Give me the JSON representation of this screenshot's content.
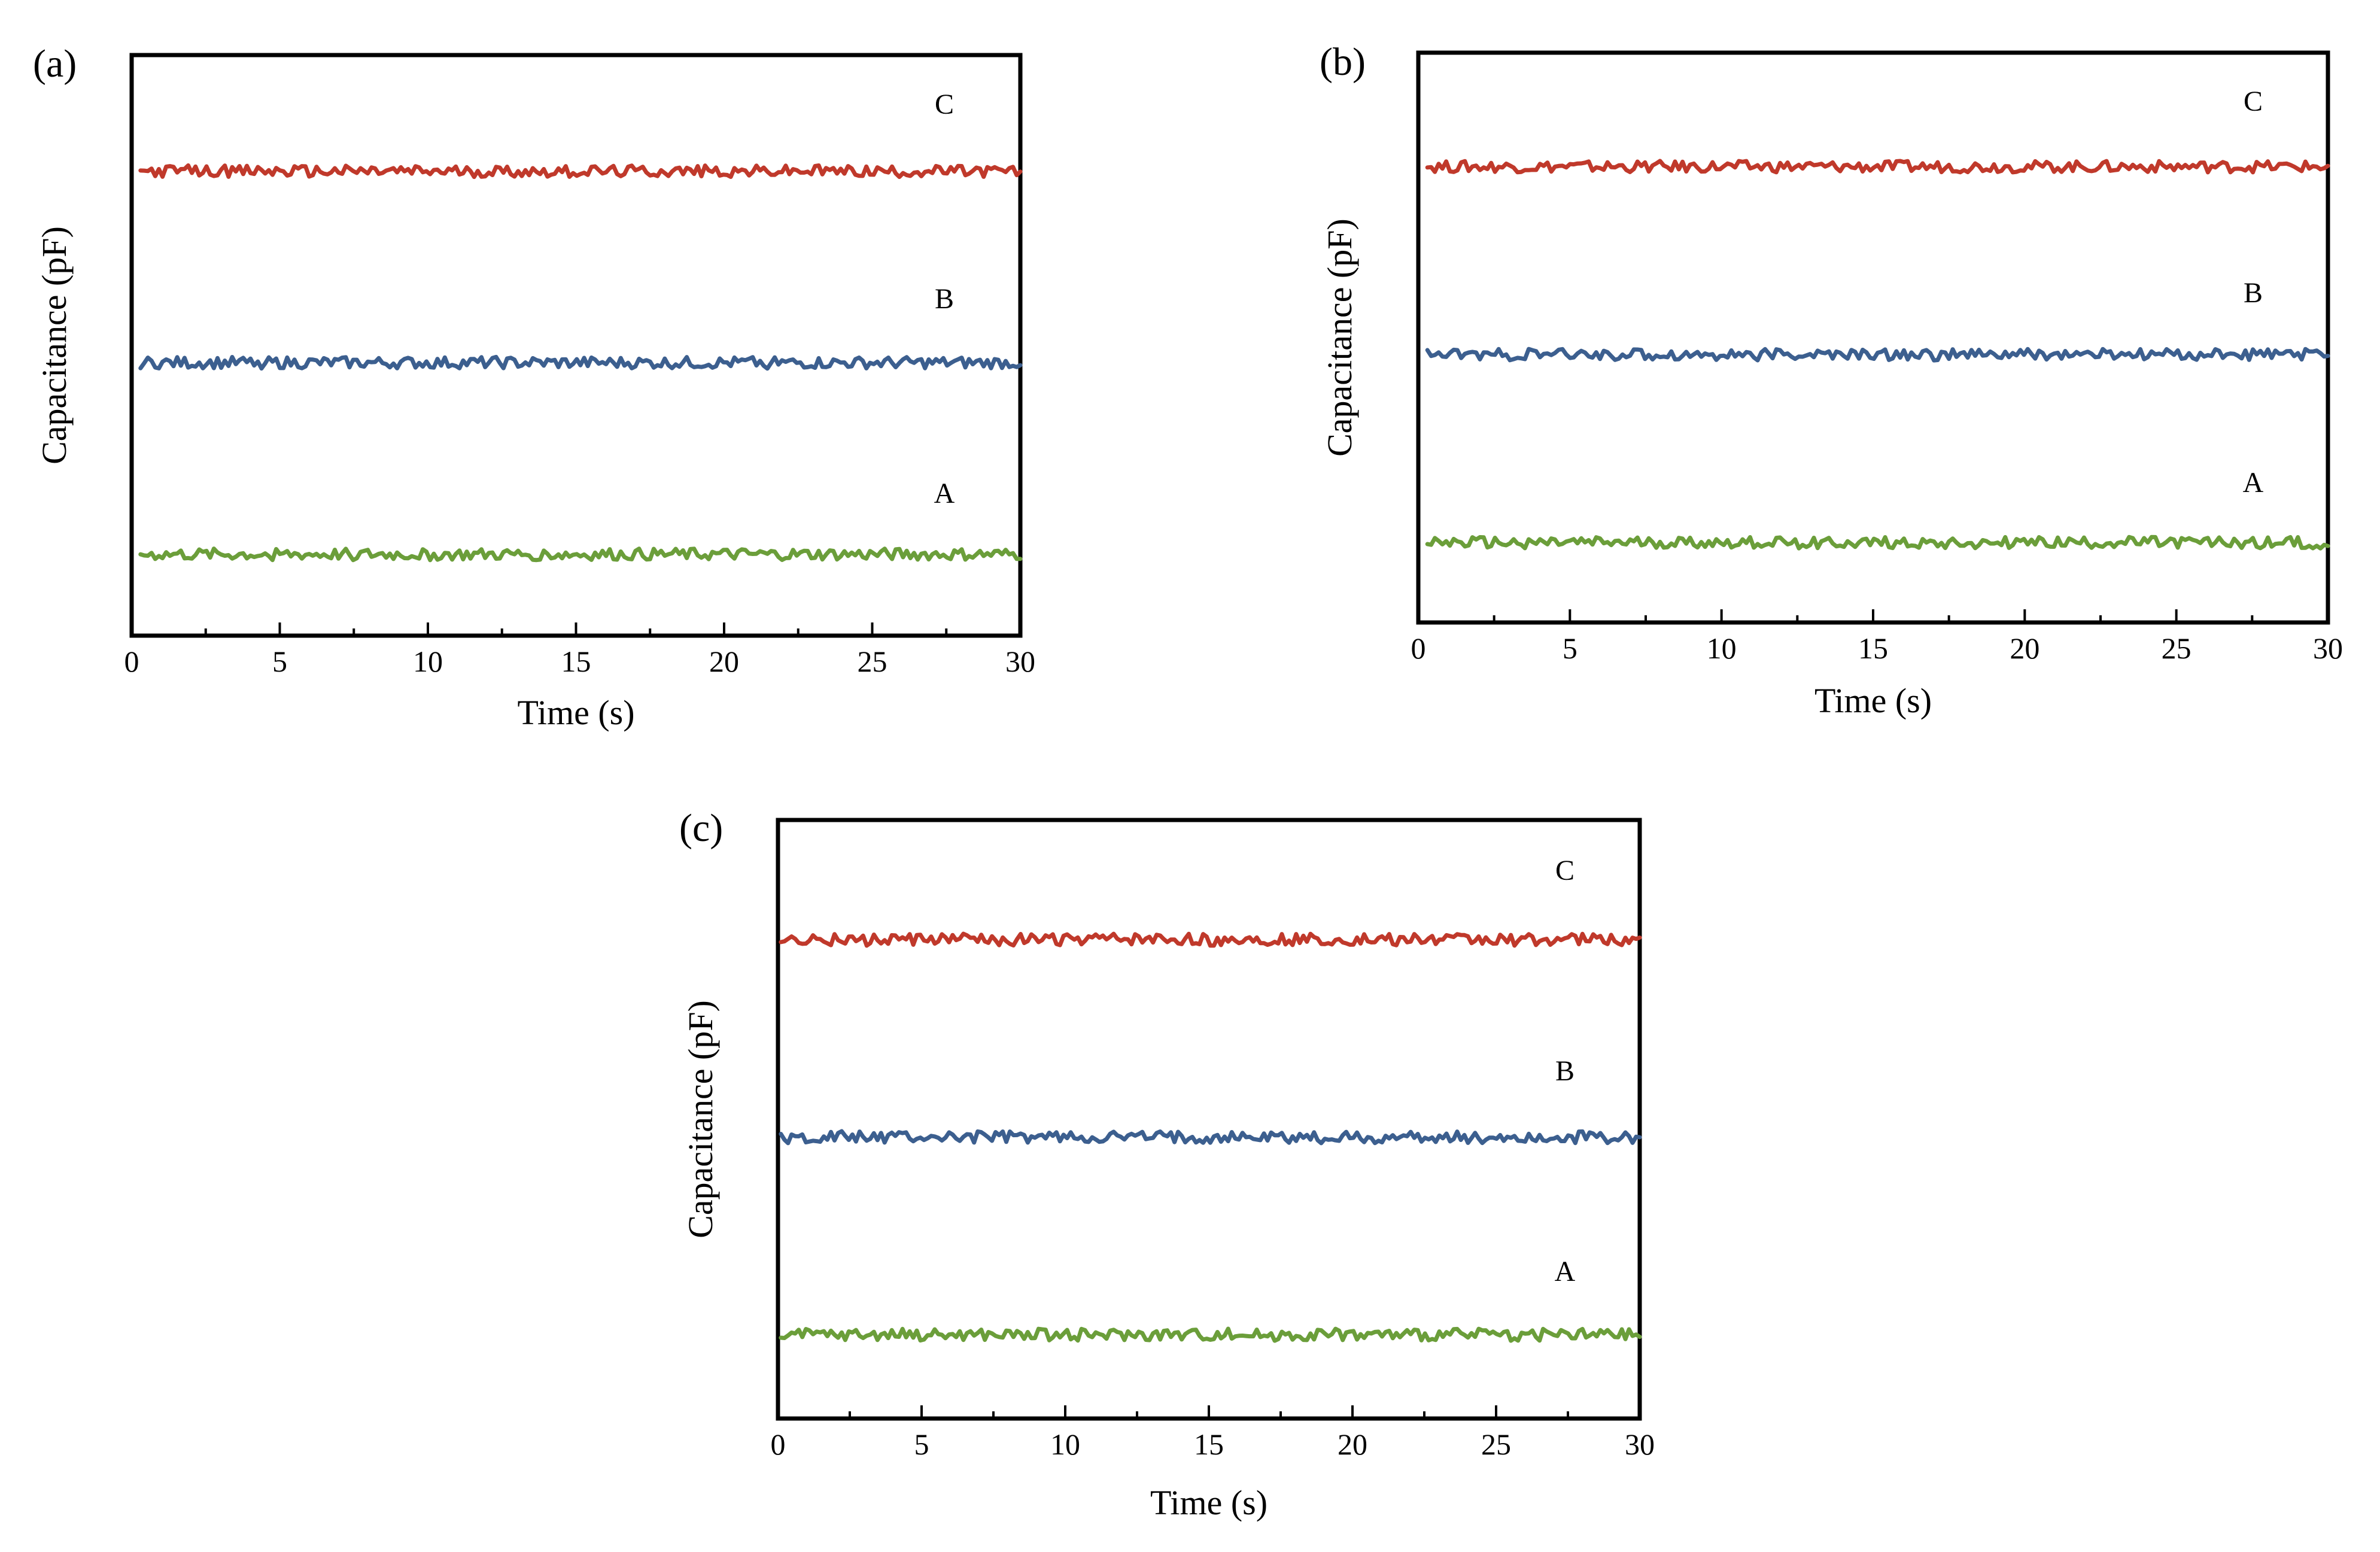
{
  "chart_data": [
    {
      "type": "line",
      "panel_label": "(a)",
      "xlabel": "Time (s)",
      "ylabel": "Capacitance (pF)",
      "xlim": [
        0,
        30
      ],
      "ylim": [
        0,
        10
      ],
      "x_ticks": [
        0,
        5,
        10,
        15,
        20,
        25,
        30
      ],
      "series": [
        {
          "name": "C",
          "color": "#c0392b",
          "level": 8.0,
          "x_start": 0.3,
          "x_end": 30
        },
        {
          "name": "B",
          "color": "#3c5f8f",
          "level": 4.7,
          "x_start": 0.3,
          "x_end": 30
        },
        {
          "name": "A",
          "color": "#6b9e3a",
          "level": 1.4,
          "x_start": 0.3,
          "x_end": 30
        }
      ]
    },
    {
      "type": "line",
      "panel_label": "(b)",
      "xlabel": "Time (s)",
      "ylabel": "Capacitance (pF)",
      "xlim": [
        0,
        30
      ],
      "ylim": [
        0,
        10
      ],
      "x_ticks": [
        0,
        5,
        10,
        15,
        20,
        25,
        30
      ],
      "series": [
        {
          "name": "C",
          "color": "#c0392b",
          "level": 8.0,
          "x_start": 0.3,
          "x_end": 30
        },
        {
          "name": "B",
          "color": "#3c5f8f",
          "level": 4.7,
          "x_start": 0.3,
          "x_end": 30
        },
        {
          "name": "A",
          "color": "#6b9e3a",
          "level": 1.4,
          "x_start": 0.3,
          "x_end": 30
        }
      ]
    },
    {
      "type": "line",
      "panel_label": "(c)",
      "xlabel": "Time (s)",
      "ylabel": "Capacitance (pF)",
      "xlim": [
        0,
        30
      ],
      "ylim": [
        0,
        10
      ],
      "x_ticks": [
        0,
        5,
        10,
        15,
        20,
        25,
        30
      ],
      "series": [
        {
          "name": "C",
          "color": "#c0392b",
          "level": 8.0,
          "x_start": 0.1,
          "x_end": 30
        },
        {
          "name": "B",
          "color": "#3c5f8f",
          "level": 4.7,
          "x_start": 0.1,
          "x_end": 30
        },
        {
          "name": "A",
          "color": "#6b9e3a",
          "level": 1.4,
          "x_start": 0.1,
          "x_end": 30
        }
      ]
    }
  ]
}
